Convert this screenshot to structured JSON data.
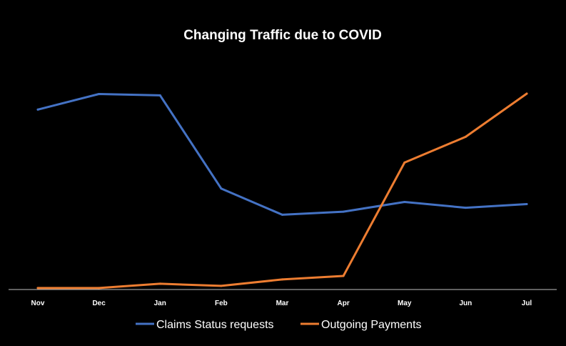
{
  "chart_data": {
    "type": "line",
    "title": "Changing Traffic due to COVID",
    "xlabel": "",
    "ylabel": "",
    "categories": [
      "Nov",
      "Dec",
      "Jan",
      "Feb",
      "Mar",
      "Apr",
      "May",
      "Jun",
      "Jul"
    ],
    "ylim": [
      0,
      100
    ],
    "grid": false,
    "legend_position": "bottom",
    "series": [
      {
        "name": "Claims Status requests",
        "color": "#4472c4",
        "values": [
          92,
          100,
          99.3,
          51.5,
          38,
          39.6,
          44.6,
          41.6,
          43.5
        ]
      },
      {
        "name": "Outgoing Payments",
        "color": "#ed7d31",
        "values": [
          0.4,
          0.4,
          2.6,
          1.5,
          4.8,
          6.6,
          64.8,
          78,
          100.2
        ]
      }
    ]
  }
}
